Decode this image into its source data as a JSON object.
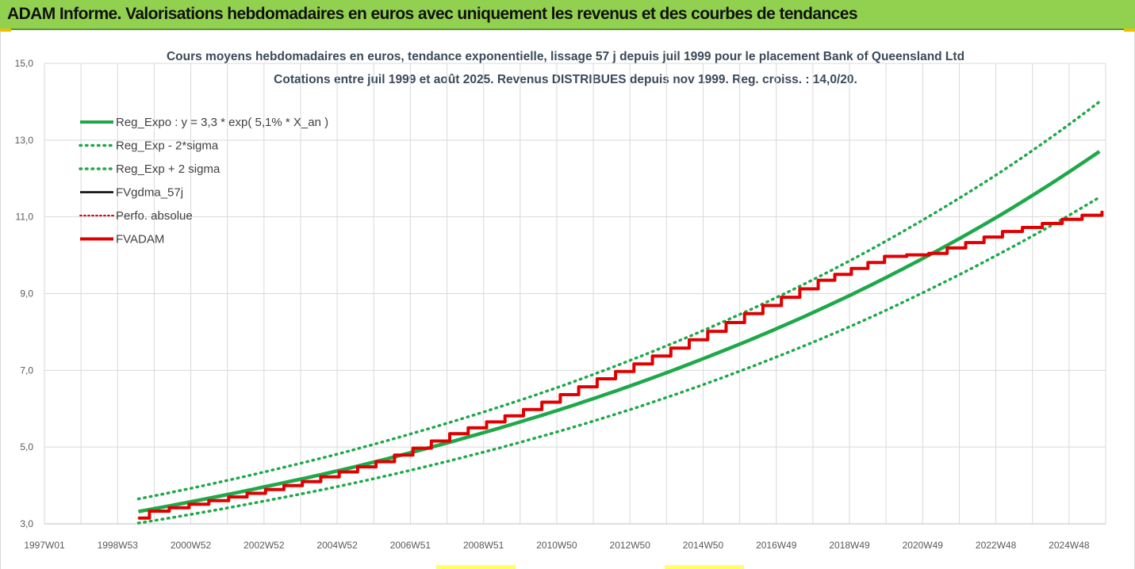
{
  "banner": {
    "title": "ADAM Informe. Valorisations hebdomadaires en euros avec uniquement les revenus et des courbes de tendances"
  },
  "chart_data": {
    "type": "line",
    "title_line1": "Cours moyens hebdomadaires en euros, tendance exponentielle, lissage 57 j depuis juil 1999 pour le placement Bank of Queensland Ltd",
    "title_line2": "Cotations entre juil 1999 et août 2025. Revenus DISTRIBUES depuis nov 1999. Reg. croiss. : 14,0/20.",
    "y_ticks": [
      "15,0",
      "13,0",
      "11,0",
      "9,0",
      "7,0",
      "5,0",
      "3,0"
    ],
    "ylim": [
      3,
      15
    ],
    "x_ticks": [
      "1997W01",
      "1998W53",
      "2000W52",
      "2002W52",
      "2004W52",
      "2006W51",
      "2008W51",
      "2010W50",
      "2012W50",
      "2014W50",
      "2016W49",
      "2018W49",
      "2020W49",
      "2022W48",
      "2024W48"
    ],
    "xlim_years": [
      1997.0,
      2025.8
    ],
    "grid": true,
    "legend_position": "top-left",
    "colors": {
      "trend": "#1fa84a",
      "band": "#1fa84a",
      "fvgdma": "#000000",
      "perf": "#e00000",
      "fvadam": "#e00000"
    },
    "series": [
      {
        "name": "Reg_Expo : y = 3,3 * exp( 5,1% *  X_an )",
        "style": "solid-thick",
        "x": [
          1999.55,
          2001,
          2003,
          2005,
          2007,
          2009,
          2011,
          2013,
          2015,
          2017,
          2019,
          2021,
          2023,
          2025.7
        ],
        "y": [
          3.32,
          3.58,
          3.97,
          4.39,
          4.87,
          5.4,
          5.98,
          6.63,
          7.35,
          8.14,
          9.02,
          10.0,
          11.08,
          12.75
        ]
      },
      {
        "name": "Reg_Exp - 2*sigma",
        "style": "dotted",
        "x": [
          1999.55,
          2001,
          2003,
          2005,
          2007,
          2009,
          2011,
          2013,
          2015,
          2017,
          2019,
          2021,
          2023,
          2025.7
        ],
        "y": [
          3.02,
          3.25,
          3.6,
          3.98,
          4.41,
          4.89,
          5.42,
          6.01,
          6.67,
          7.4,
          8.2,
          9.1,
          10.08,
          11.55
        ]
      },
      {
        "name": "Reg_Exp + 2 sigma",
        "style": "dotted",
        "x": [
          1999.55,
          2001,
          2003,
          2005,
          2007,
          2009,
          2011,
          2013,
          2015,
          2017,
          2019,
          2021,
          2023,
          2025.7
        ],
        "y": [
          3.65,
          3.93,
          4.36,
          4.83,
          5.36,
          5.94,
          6.58,
          7.3,
          8.09,
          8.96,
          9.93,
          11.01,
          12.2,
          14.05
        ]
      },
      {
        "name": "FVgdma_57j",
        "style": "solid",
        "x": [
          1999.55,
          1999.85,
          2002,
          2004,
          2006,
          2008,
          2010,
          2012,
          2014,
          2016,
          2018,
          2019.8,
          2021,
          2023,
          2025.7
        ],
        "y": [
          3.15,
          3.33,
          3.7,
          4.1,
          4.62,
          5.35,
          5.98,
          6.78,
          7.58,
          8.48,
          9.35,
          9.97,
          10.05,
          10.62,
          11.15
        ]
      },
      {
        "name": "Perfo. absolue",
        "style": "dotted",
        "x": [
          1999.55,
          1999.85,
          2002,
          2004,
          2006,
          2008,
          2010,
          2012,
          2014,
          2016,
          2018,
          2019.8,
          2021,
          2023,
          2025.7
        ],
        "y": [
          3.15,
          3.33,
          3.7,
          4.1,
          4.62,
          5.35,
          5.98,
          6.78,
          7.58,
          8.48,
          9.35,
          9.97,
          10.05,
          10.62,
          11.15
        ]
      },
      {
        "name": "FVADAM",
        "style": "solid-thick",
        "x": [
          1999.55,
          1999.85,
          2002,
          2004,
          2006,
          2008,
          2010,
          2012,
          2014,
          2016,
          2018,
          2019.8,
          2021,
          2023,
          2025.7
        ],
        "y": [
          3.15,
          3.33,
          3.7,
          4.1,
          4.62,
          5.35,
          5.98,
          6.78,
          7.58,
          8.48,
          9.35,
          9.97,
          10.05,
          10.62,
          11.15
        ]
      }
    ]
  }
}
